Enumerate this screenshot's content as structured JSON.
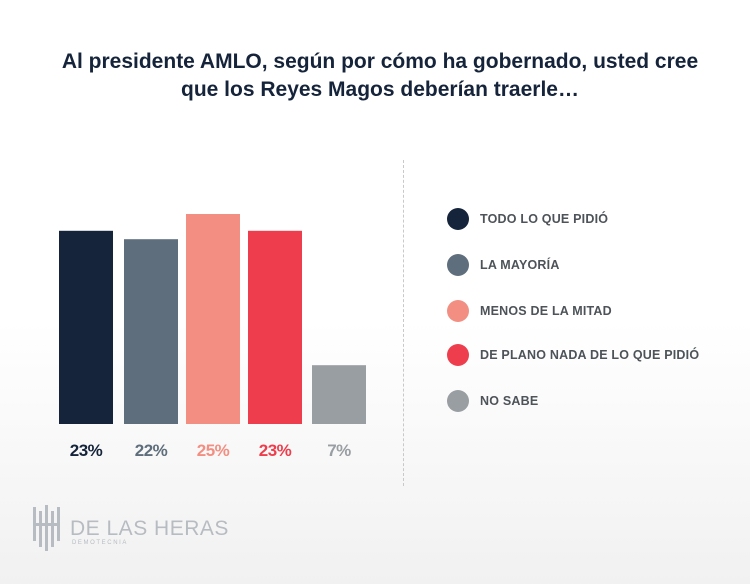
{
  "title": {
    "line1": "Al presidente AMLO, según por cómo ha gobernado, usted cree",
    "line2": "que los Reyes Magos deberían traerle…"
  },
  "colors": {
    "todo": "#15243a",
    "mayoria": "#5f6e7c",
    "menos": "#f28f82",
    "nada": "#ee3d4c",
    "nosabe": "#999ea3"
  },
  "chart_data": {
    "type": "bar",
    "categories": [
      "TODO LO QUE PIDIÓ",
      "LA MAYORÍA",
      "MENOS DE LA MITAD",
      "DE PLANO NADA DE LO QUE PIDIÓ",
      "NO SABE"
    ],
    "values": [
      23,
      22,
      25,
      23,
      7
    ],
    "value_labels": [
      "23%",
      "22%",
      "25%",
      "23%",
      "7%"
    ],
    "colors": [
      "#15243a",
      "#5f6e7c",
      "#f28f82",
      "#ee3d4c",
      "#999ea3"
    ],
    "ylim": [
      0,
      25
    ],
    "grid": false,
    "legend_position": "right"
  },
  "legend": {
    "items": [
      {
        "label": "TODO LO QUE PIDIÓ",
        "color": "#15243a"
      },
      {
        "label": "LA MAYORÍA",
        "color": "#5f6e7c"
      },
      {
        "label": "MENOS DE LA MITAD",
        "color": "#f28f82"
      },
      {
        "label": "DE PLANO NADA DE LO QUE PIDIÓ",
        "color": "#ee3d4c"
      },
      {
        "label": "NO SABE",
        "color": "#999ea3"
      }
    ]
  },
  "brand": {
    "name": "DE LAS HERAS",
    "sub": "DEMOTECNIA"
  }
}
